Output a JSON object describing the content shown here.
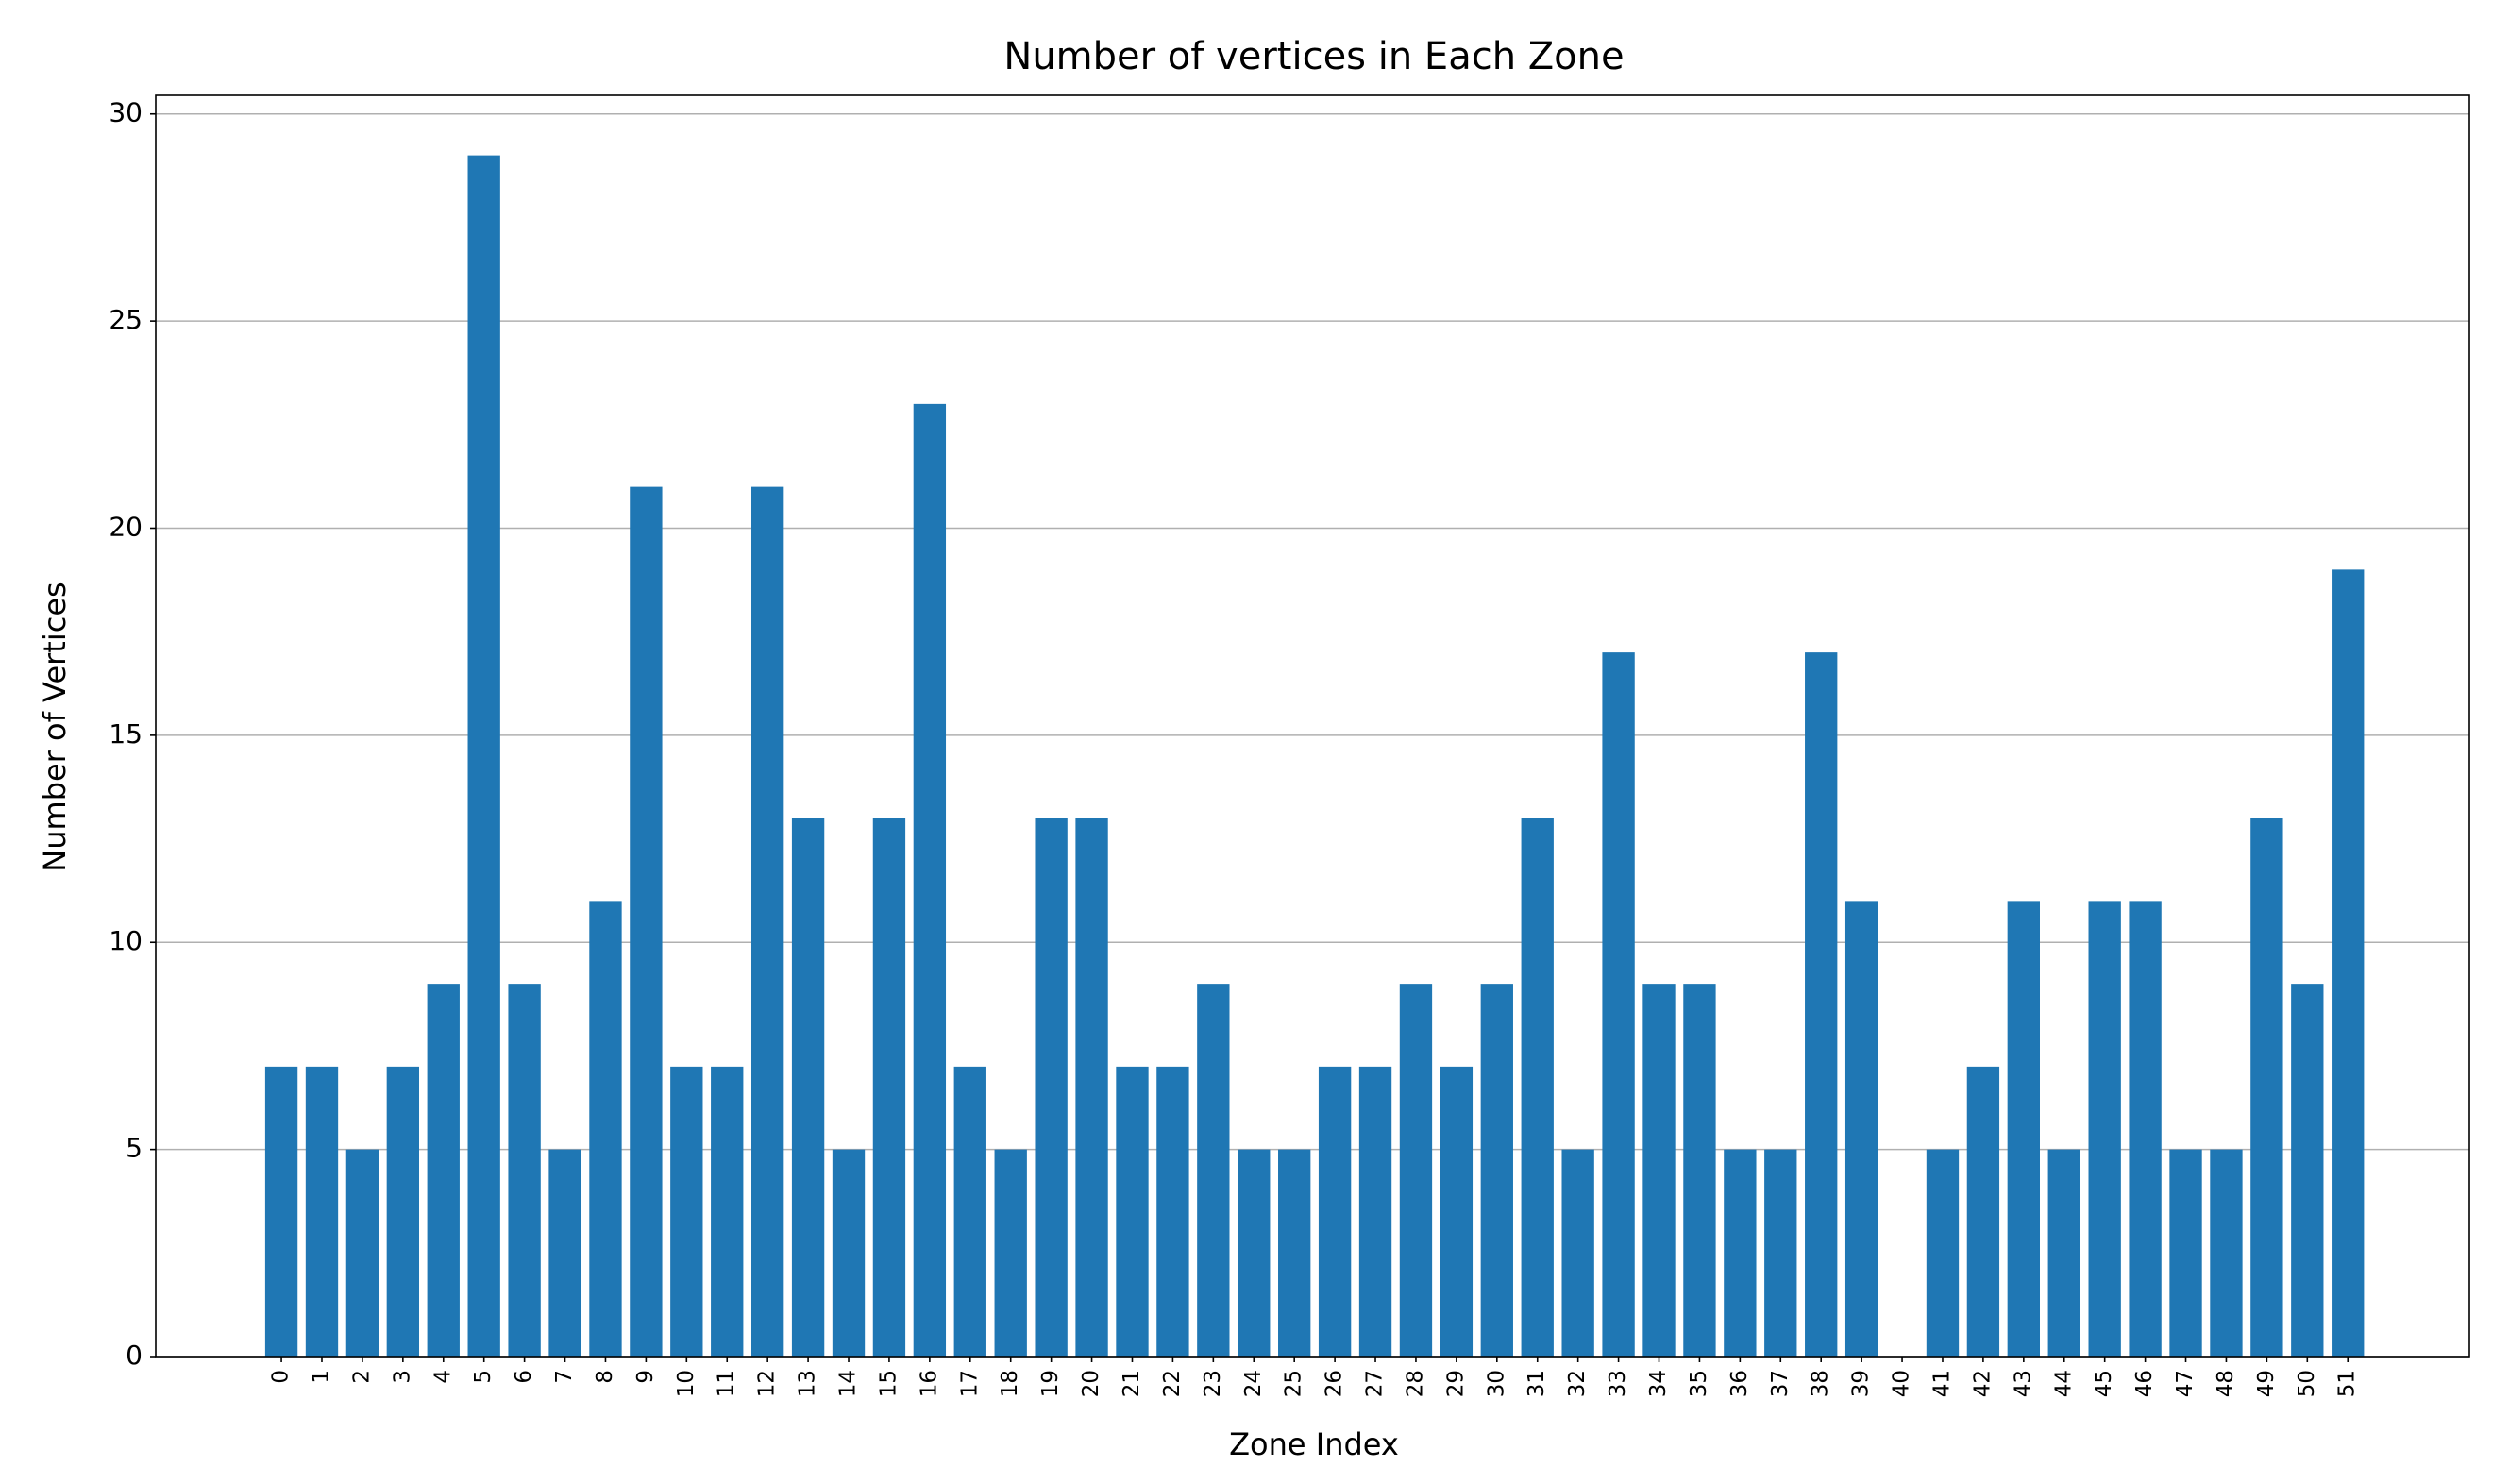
{
  "chart_data": {
    "type": "bar",
    "title": "Number of vertices in Each Zone",
    "xlabel": "Zone Index",
    "ylabel": "Number of Vertices",
    "categories": [
      "0",
      "1",
      "2",
      "3",
      "4",
      "5",
      "6",
      "7",
      "8",
      "9",
      "10",
      "11",
      "12",
      "13",
      "14",
      "15",
      "16",
      "17",
      "18",
      "19",
      "20",
      "21",
      "22",
      "23",
      "24",
      "25",
      "26",
      "27",
      "28",
      "29",
      "30",
      "31",
      "32",
      "33",
      "34",
      "35",
      "36",
      "37",
      "38",
      "39",
      "40",
      "41",
      "42",
      "43",
      "44",
      "45",
      "46",
      "47",
      "48",
      "49",
      "50",
      "51"
    ],
    "values": [
      7,
      7,
      5,
      7,
      9,
      29,
      9,
      5,
      11,
      21,
      7,
      7,
      21,
      13,
      5,
      13,
      23,
      7,
      5,
      13,
      13,
      7,
      7,
      9,
      5,
      5,
      7,
      7,
      9,
      7,
      9,
      13,
      5,
      17,
      9,
      9,
      5,
      5,
      17,
      11,
      0,
      5,
      7,
      11,
      5,
      11,
      11,
      5,
      5,
      13,
      9,
      19
    ],
    "color": "#1f77b4",
    "xlim": [
      -3.1,
      54.0
    ],
    "ylim": [
      0,
      30.45
    ],
    "yticks": [
      0,
      5,
      10,
      15,
      20,
      25,
      30
    ],
    "grid": true
  }
}
